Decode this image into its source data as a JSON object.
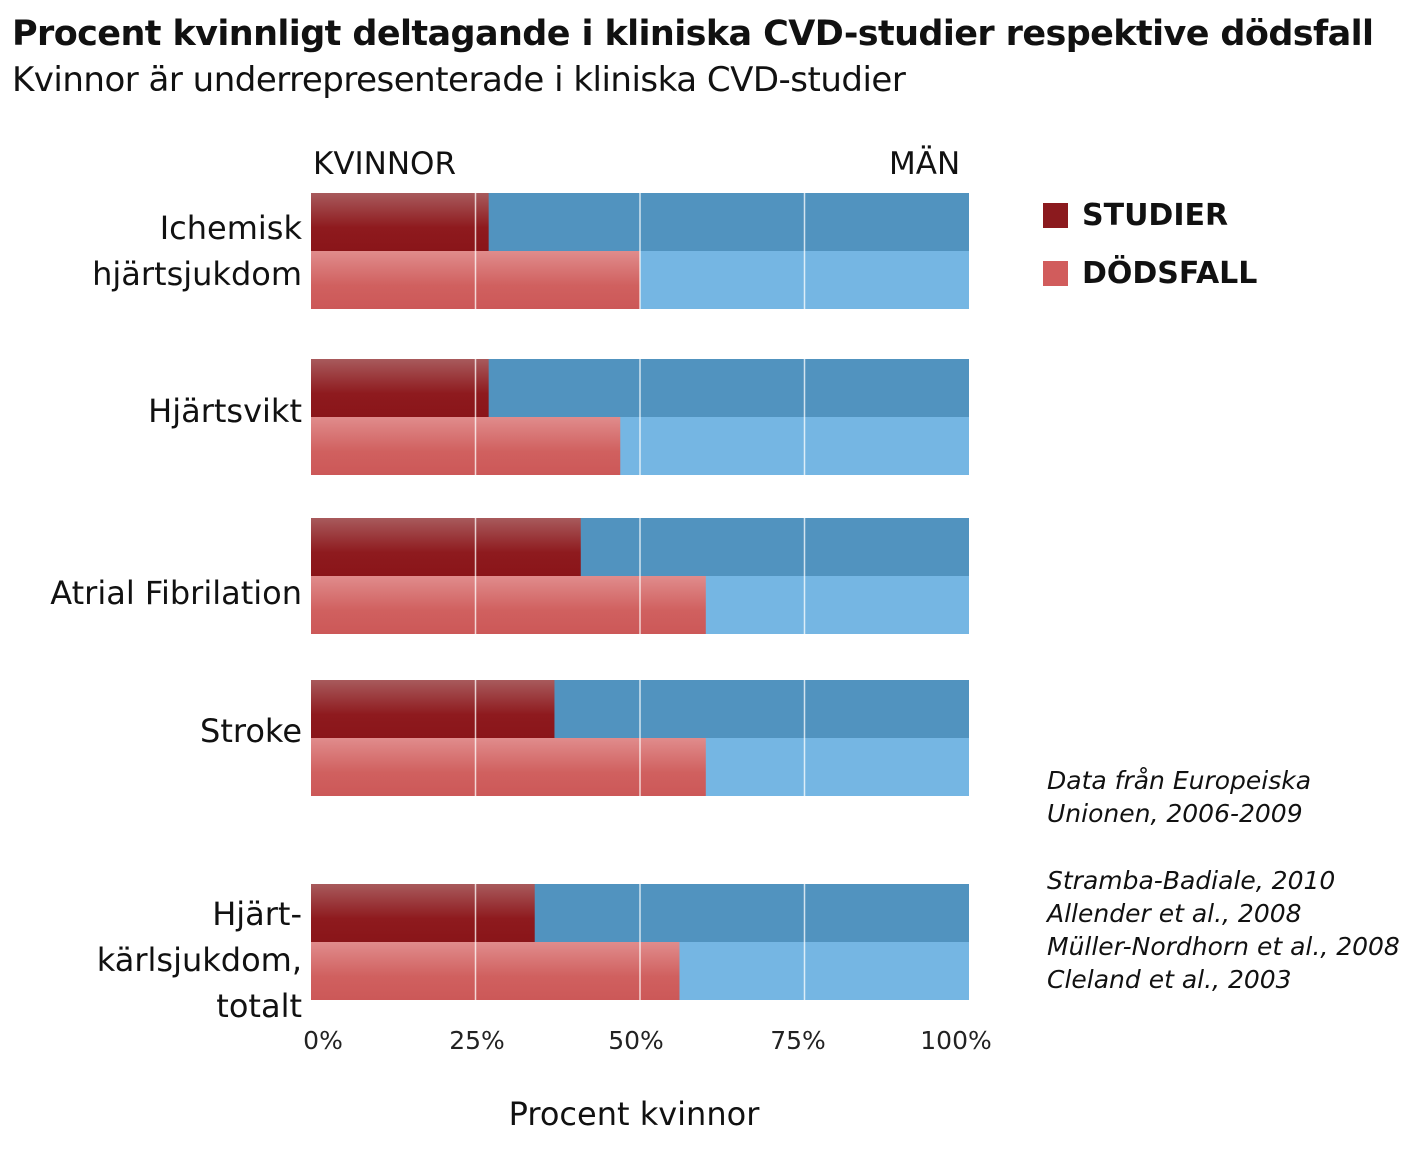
{
  "chart_data": {
    "type": "bar",
    "orientation": "horizontal",
    "stacked": true,
    "title": "Procent kvinnligt deltagande i kliniska CVD-studier respektive dödsfall",
    "subtitle": "Kvinnor är underrepresenterade i kliniska CVD-studier",
    "xlabel": "Procent kvinnor",
    "left_label": "KVINNOR",
    "right_label": "MÄN",
    "xlim": [
      0,
      100
    ],
    "xticks": [
      "0%",
      "25%",
      "50%",
      "75%",
      "100%"
    ],
    "grid": true,
    "categories": [
      "Ichemisk\nhjärtsjukdom",
      "Hjärtsvikt",
      "Atrial Fibrilation",
      "Stroke",
      "Hjärt- kärlsjukdom,\ntotalt"
    ],
    "series": [
      {
        "name": "STUDIER",
        "values": [
          27,
          27,
          41,
          37,
          34
        ],
        "color": "#8b1a1e",
        "men_color": "#5193bf"
      },
      {
        "name": "DÖDSFALL",
        "values": [
          50,
          47,
          60,
          60,
          56
        ],
        "color": "#d15c5c",
        "men_color": "#75b6e3"
      }
    ],
    "legend_position": "right",
    "notes": [
      "Data från Europeiska\nUnionen, 2006-2009",
      "Stramba-Badiale, 2010\nAllender et al., 2008\nMüller-Nordhorn et al., 2008\nCleland et al., 2003"
    ]
  }
}
